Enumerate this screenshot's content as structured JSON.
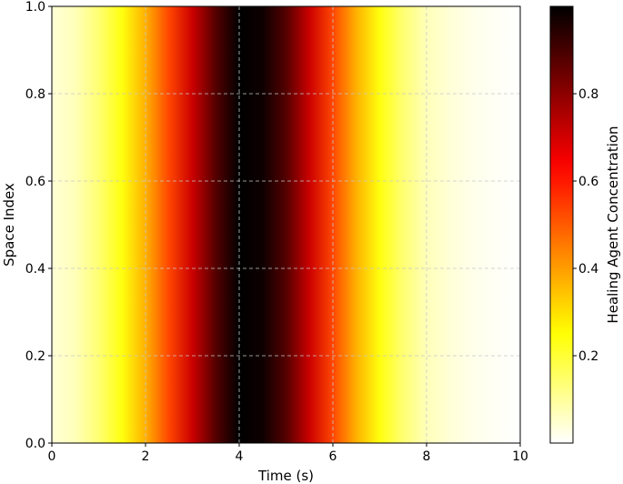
{
  "chart_data": {
    "type": "heatmap",
    "title": "",
    "xlabel": "Time (s)",
    "ylabel": "Space Index",
    "colorbar_label": "Healing Agent Concentration",
    "colormap": "hot_r",
    "xlim": [
      0,
      10
    ],
    "ylim": [
      0,
      1
    ],
    "x_ticks": [
      "0",
      "2",
      "4",
      "6",
      "8",
      "10"
    ],
    "y_ticks": [
      "0.0",
      "0.2",
      "0.4",
      "0.6",
      "0.8",
      "1.0"
    ],
    "colorbar_ticks": [
      "0.2",
      "0.4",
      "0.6",
      "0.8"
    ],
    "colorbar_range": [
      0,
      1
    ],
    "grid": true,
    "profile": {
      "description": "Concentration constant along space; varies with time as a Gaussian pulse",
      "time": [
        0,
        0.5,
        1,
        1.5,
        2,
        2.5,
        3,
        3.5,
        4,
        4.5,
        5,
        5.5,
        6,
        6.5,
        7,
        7.5,
        8,
        8.5,
        9,
        9.5,
        10
      ],
      "concentration": [
        0.04,
        0.07,
        0.14,
        0.24,
        0.37,
        0.53,
        0.71,
        0.88,
        1.0,
        0.98,
        0.88,
        0.71,
        0.53,
        0.37,
        0.24,
        0.14,
        0.07,
        0.04,
        0.02,
        0.01,
        0.0
      ]
    }
  }
}
